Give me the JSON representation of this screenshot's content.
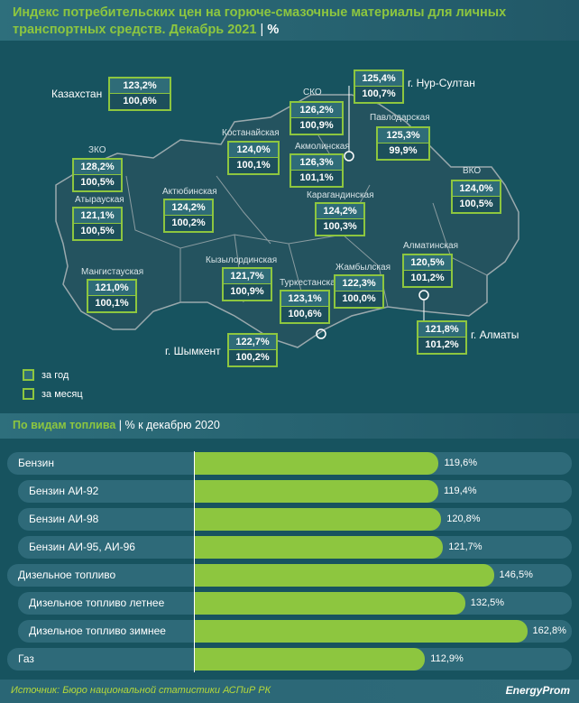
{
  "title": {
    "text": "Индекс потребительских цен на горюче-смазочные материалы для личных транспортных средств. Декабрь 2021",
    "sep": "|",
    "unit": "%"
  },
  "map": {
    "kazakhstan": {
      "name": "Казахстан",
      "year": "123,2%",
      "month": "100,6%"
    },
    "regions": [
      {
        "name": "СКО",
        "year": "126,2%",
        "month": "100,9%"
      },
      {
        "name": "г. Нур-Султан",
        "year": "125,4%",
        "month": "100,7%"
      },
      {
        "name": "Павлодарская",
        "year": "125,3%",
        "month": "99,9%"
      },
      {
        "name": "Костанайская",
        "year": "124,0%",
        "month": "100,1%"
      },
      {
        "name": "Акмолинская",
        "year": "126,3%",
        "month": "101,1%"
      },
      {
        "name": "ЗКО",
        "year": "128,2%",
        "month": "100,5%"
      },
      {
        "name": "Атырауская",
        "year": "121,1%",
        "month": "100,5%"
      },
      {
        "name": "Актюбинская",
        "year": "124,2%",
        "month": "100,2%"
      },
      {
        "name": "Карагандинская",
        "year": "124,2%",
        "month": "100,3%"
      },
      {
        "name": "ВКО",
        "year": "124,0%",
        "month": "100,5%"
      },
      {
        "name": "Мангистауская",
        "year": "121,0%",
        "month": "100,1%"
      },
      {
        "name": "Кызылординская",
        "year": "121,7%",
        "month": "100,9%"
      },
      {
        "name": "Туркестанская",
        "year": "123,1%",
        "month": "100,6%"
      },
      {
        "name": "Жамбылская",
        "year": "122,3%",
        "month": "100,0%"
      },
      {
        "name": "Алматинская",
        "year": "120,5%",
        "month": "101,2%"
      },
      {
        "name": "г. Алматы",
        "year": "121,8%",
        "month": "101,2%"
      },
      {
        "name": "г. Шымкент",
        "year": "122,7%",
        "month": "100,2%"
      }
    ],
    "legend": {
      "year": "за год",
      "month": "за месяц"
    }
  },
  "subtitle": {
    "text": "По видам топлива",
    "sep": "|",
    "unit": "% к декабрю 2020"
  },
  "chart_data": {
    "type": "bar",
    "orientation": "horizontal",
    "title": "По видам топлива",
    "unit": "% к декабрю 2020",
    "categories": [
      "Бензин",
      "Бензин АИ-92",
      "Бензин АИ-98",
      "Бензин АИ-95, АИ-96",
      "Дизельное топливо",
      "Дизельное топливо летнее",
      "Дизельное топливо зимнее",
      "Газ"
    ],
    "values": [
      119.6,
      119.4,
      120.8,
      121.7,
      146.5,
      132.5,
      162.8,
      112.9
    ],
    "labels": [
      "119,6%",
      "119,4%",
      "120,8%",
      "121,7%",
      "146,5%",
      "132,5%",
      "162,8%",
      "112,9%"
    ],
    "indent": [
      false,
      true,
      true,
      true,
      false,
      true,
      true,
      false
    ],
    "bar_color": "#8dc63f"
  },
  "footer": {
    "source": "Источник: Бюро национальной статистики АСПиР РК",
    "logo": "EnergyProm"
  }
}
